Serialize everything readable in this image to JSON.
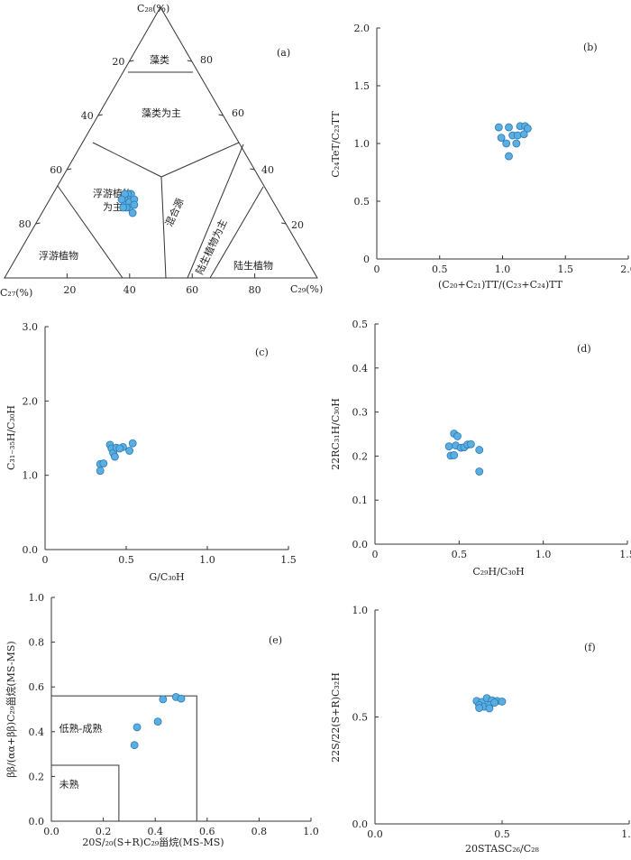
{
  "style": {
    "marker_fill": "#5aafe0",
    "marker_stroke": "#2a78b8",
    "axis_color": "#333333"
  },
  "ternary": {
    "tag": "(a)",
    "top_label": "C₂₈(%)",
    "left_label": "C₂₇(%)",
    "right_label": "C₂₉(%)",
    "bottom_ticks": [
      "20",
      "40",
      "60",
      "80"
    ],
    "left_ticks": [
      "20",
      "40",
      "60",
      "80"
    ],
    "right_ticks": [
      "80",
      "60",
      "40",
      "20"
    ],
    "region_labels": [
      "藻类",
      "藻类为主",
      "浮游植物",
      "为主",
      "浮游植物",
      "混合源",
      "陆生植物为主",
      "陆生植物"
    ],
    "points": [
      [
        0.44,
        0.25
      ],
      [
        0.45,
        0.24
      ],
      [
        0.46,
        0.25
      ],
      [
        0.47,
        0.24
      ],
      [
        0.48,
        0.25
      ],
      [
        0.46,
        0.26
      ],
      [
        0.47,
        0.27
      ],
      [
        0.48,
        0.26
      ],
      [
        0.49,
        0.25
      ],
      [
        0.44,
        0.27
      ],
      [
        0.45,
        0.28
      ],
      [
        0.47,
        0.29
      ],
      [
        0.46,
        0.23
      ],
      [
        0.48,
        0.23
      ]
    ]
  },
  "chart_data": [
    {
      "type": "scatter",
      "tag": "(b)",
      "xlabel": "(C₂₀+C₂₁)TT/(C₂₃+C₂₄)TT",
      "ylabel": "C₂₄TeT/C₂₃TT",
      "xlim": [
        0,
        2.0
      ],
      "ylim": [
        0,
        2.0
      ],
      "xticks": [
        "0",
        "0.5",
        "1.0",
        "1.5",
        "2.0"
      ],
      "yticks": [
        "0",
        "0.5",
        "1.0",
        "1.5",
        "2.0"
      ],
      "points": [
        [
          0.97,
          1.14
        ],
        [
          1.05,
          1.14
        ],
        [
          1.14,
          1.15
        ],
        [
          1.18,
          1.15
        ],
        [
          1.2,
          1.13
        ],
        [
          0.99,
          1.05
        ],
        [
          1.08,
          1.07
        ],
        [
          1.12,
          1.07
        ],
        [
          1.17,
          1.08
        ],
        [
          1.03,
          1.0
        ],
        [
          1.11,
          1.0
        ],
        [
          1.05,
          0.89
        ]
      ]
    },
    {
      "type": "scatter",
      "tag": "(c)",
      "xlabel": "G/C₃₀H",
      "ylabel": "C₃₁₋₃₅H/C₃₀H",
      "xlim": [
        0,
        1.5
      ],
      "ylim": [
        0,
        3.0
      ],
      "xticks": [
        "0",
        "0.5",
        "1.0",
        "1.5"
      ],
      "yticks": [
        "0.0",
        "1.0",
        "2.0",
        "3.0"
      ],
      "points": [
        [
          0.34,
          1.15
        ],
        [
          0.36,
          1.16
        ],
        [
          0.34,
          1.06
        ],
        [
          0.4,
          1.41
        ],
        [
          0.41,
          1.36
        ],
        [
          0.42,
          1.3
        ],
        [
          0.44,
          1.37
        ],
        [
          0.43,
          1.25
        ],
        [
          0.48,
          1.38
        ],
        [
          0.52,
          1.33
        ],
        [
          0.54,
          1.43
        ],
        [
          0.46,
          1.36
        ]
      ]
    },
    {
      "type": "scatter",
      "tag": "(d)",
      "xlabel": "C₂₉H/C₃₀H",
      "ylabel": "22RC₃₁H/C₃₀H",
      "xlim": [
        0,
        1.5
      ],
      "ylim": [
        0,
        0.5
      ],
      "xticks": [
        "0",
        "0.5",
        "1.0",
        "1.5"
      ],
      "yticks": [
        "0.0",
        "0.1",
        "0.2",
        "0.3",
        "0.4",
        "0.5"
      ],
      "points": [
        [
          0.47,
          0.251
        ],
        [
          0.49,
          0.245
        ],
        [
          0.44,
          0.222
        ],
        [
          0.48,
          0.224
        ],
        [
          0.51,
          0.219
        ],
        [
          0.53,
          0.22
        ],
        [
          0.55,
          0.226
        ],
        [
          0.57,
          0.227
        ],
        [
          0.45,
          0.201
        ],
        [
          0.47,
          0.202
        ],
        [
          0.62,
          0.214
        ],
        [
          0.62,
          0.165
        ]
      ]
    },
    {
      "type": "scatter",
      "tag": "(e)",
      "xlabel": "20S/₂₀(S+R)C₂₉甾烷(MS-MS)",
      "ylabel": "ββ/(αα+ββ)C₂₉甾烷(MS-MS)",
      "xlim": [
        0,
        1.0
      ],
      "ylim": [
        0,
        1.0
      ],
      "xticks": [
        "0.0",
        "0.2",
        "0.4",
        "0.6",
        "0.8",
        "1.0"
      ],
      "yticks": [
        "0.0",
        "0.2",
        "0.4",
        "0.6",
        "0.8",
        "1.0"
      ],
      "region_labels": [
        "低熟-成熟",
        "未熟"
      ],
      "boxes": [
        [
          0,
          0,
          0.56,
          0.56
        ],
        [
          0,
          0,
          0.26,
          0.25
        ]
      ],
      "points": [
        [
          0.43,
          0.545
        ],
        [
          0.48,
          0.555
        ],
        [
          0.5,
          0.548
        ],
        [
          0.41,
          0.445
        ],
        [
          0.33,
          0.42
        ],
        [
          0.32,
          0.34
        ]
      ]
    },
    {
      "type": "scatter",
      "tag": "(f)",
      "xlabel": "20STASC₂₆/C₂₈",
      "ylabel": "22S/22(S+R)C₃₂H",
      "xlim": [
        0,
        1.0
      ],
      "ylim": [
        0,
        1.0
      ],
      "xticks": [
        "0.0",
        "0.5",
        "1.0"
      ],
      "yticks": [
        "0.0",
        "0.5",
        "1.0"
      ],
      "points": [
        [
          0.4,
          0.575
        ],
        [
          0.42,
          0.57
        ],
        [
          0.44,
          0.588
        ],
        [
          0.46,
          0.578
        ],
        [
          0.48,
          0.575
        ],
        [
          0.5,
          0.572
        ],
        [
          0.41,
          0.555
        ],
        [
          0.43,
          0.548
        ],
        [
          0.45,
          0.556
        ],
        [
          0.47,
          0.567
        ],
        [
          0.41,
          0.542
        ],
        [
          0.45,
          0.54
        ]
      ]
    }
  ]
}
